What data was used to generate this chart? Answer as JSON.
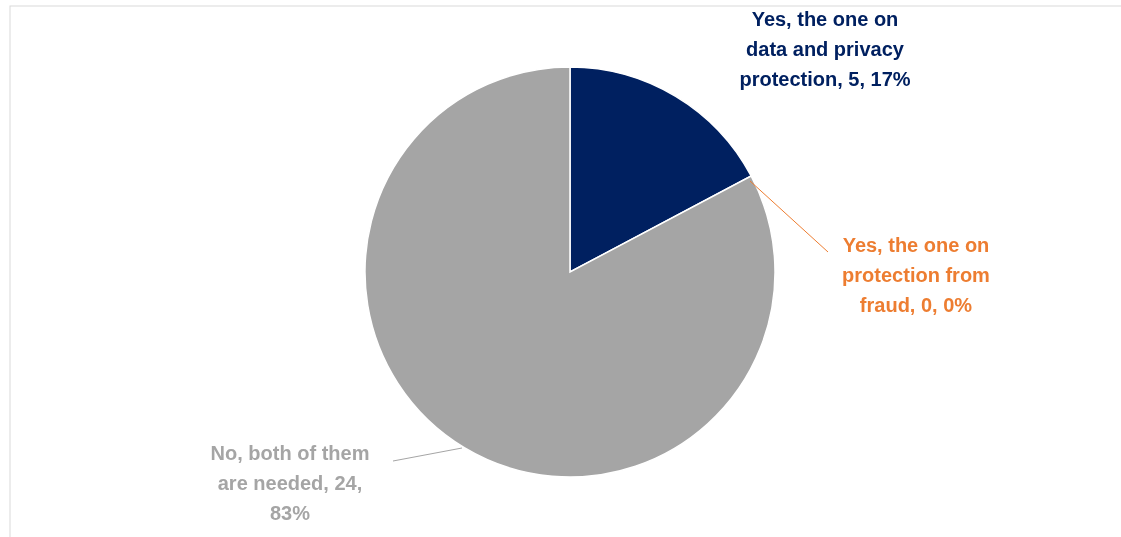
{
  "chart_data": {
    "type": "pie",
    "categories": [
      "Yes, the one on data and privacy protection",
      "Yes, the one on protection from fraud",
      "No, both of them are needed"
    ],
    "values": [
      5,
      0,
      24
    ],
    "colors": [
      "#002060",
      "#ed7d31",
      "#a5a5a5"
    ],
    "value_labels": [
      ", 5, 17%",
      ", 0, 0%",
      ", 24, 83%"
    ]
  }
}
